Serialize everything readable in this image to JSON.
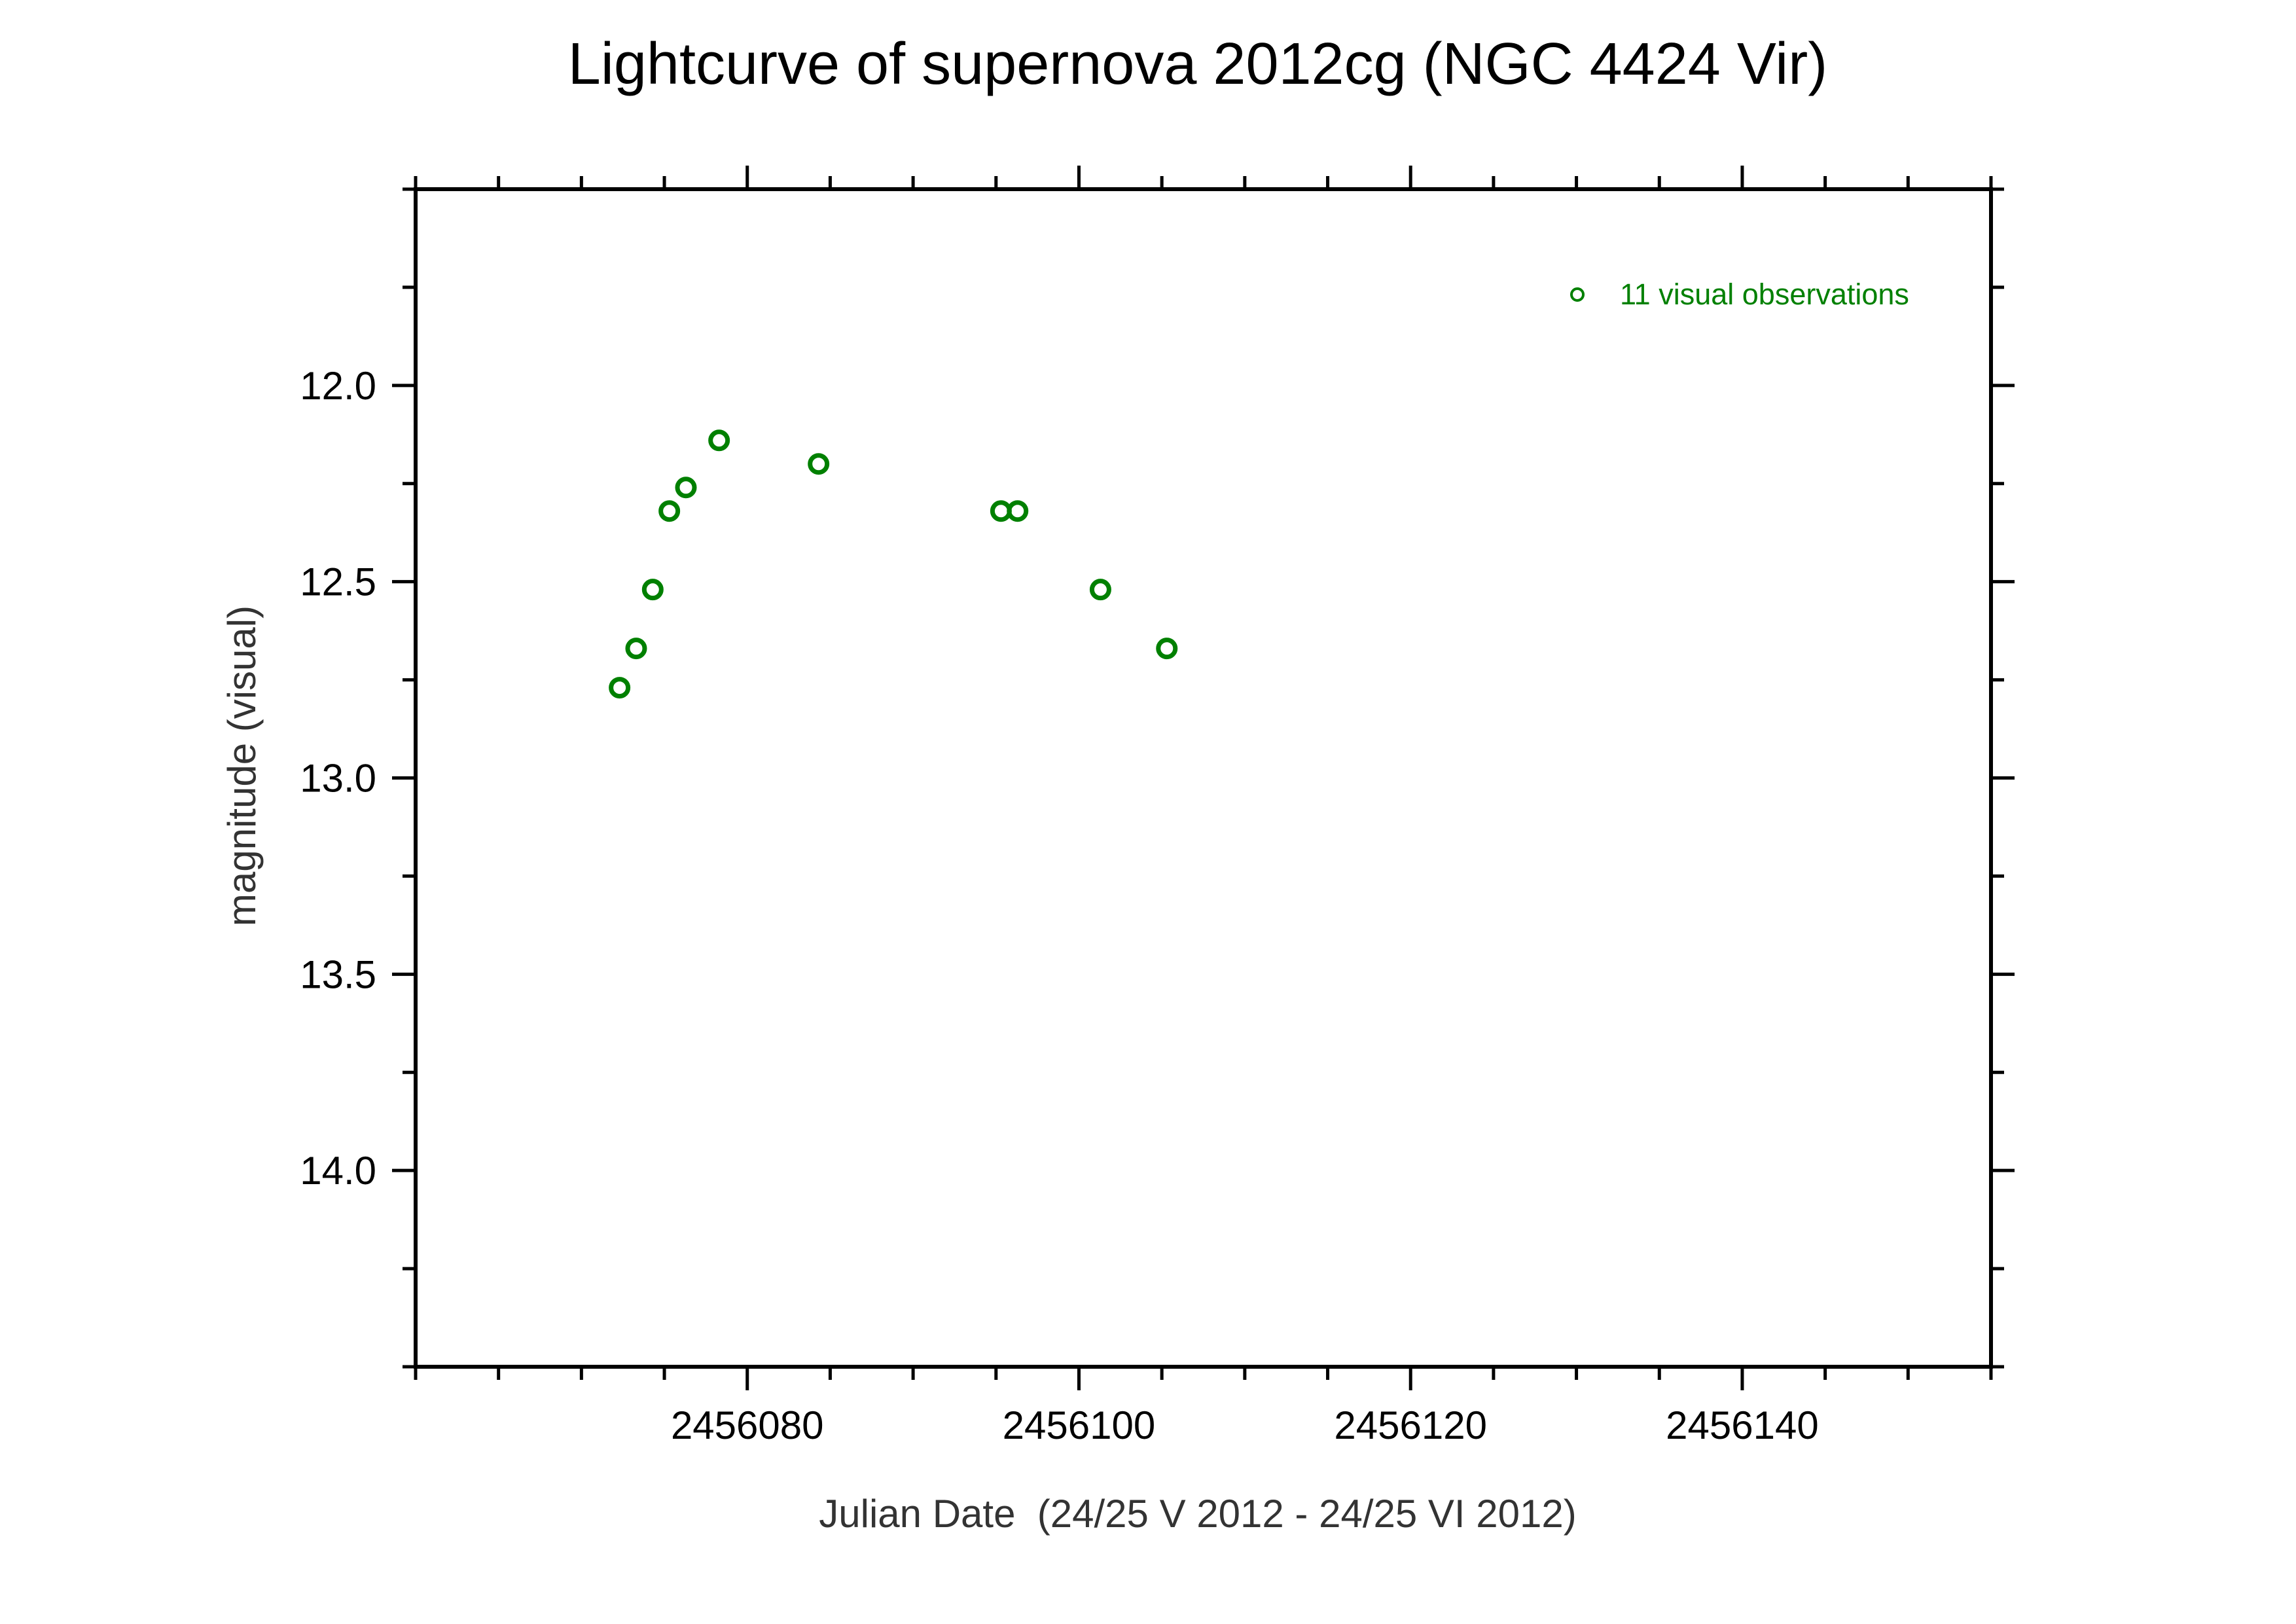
{
  "chart_data": {
    "type": "scatter",
    "title": "Lightcurve of supernova 2012cg (NGC 4424 Vir)",
    "xlabel": "Julian Date  (24/25 V 2012 - 24/25 VI 2012)",
    "ylabel": "magnitude (visual)",
    "xlim": [
      2456060,
      2456155
    ],
    "ylim": [
      14.5,
      11.5
    ],
    "y_inverted": true,
    "x_ticks": [
      2456080,
      2456100,
      2456120,
      2456140
    ],
    "x_tick_labels": [
      "2456080",
      "2456100",
      "2456120",
      "2456140"
    ],
    "y_ticks": [
      12.0,
      12.5,
      13.0,
      13.5,
      14.0
    ],
    "y_tick_labels": [
      "12.0",
      "12.5",
      "13.0",
      "13.5",
      "14.0"
    ],
    "grid": false,
    "legend_position": "top-right",
    "series": [
      {
        "name": "11 visual observations",
        "color": "#008000",
        "marker": "open-circle",
        "x": [
          2456072.3,
          2456073.3,
          2456074.3,
          2456075.3,
          2456076.3,
          2456078.3,
          2456084.3,
          2456095.3,
          2456096.3,
          2456101.3,
          2456105.3
        ],
        "y": [
          12.77,
          12.67,
          12.52,
          12.32,
          12.26,
          12.14,
          12.2,
          12.32,
          12.32,
          12.52,
          12.67
        ]
      }
    ]
  }
}
